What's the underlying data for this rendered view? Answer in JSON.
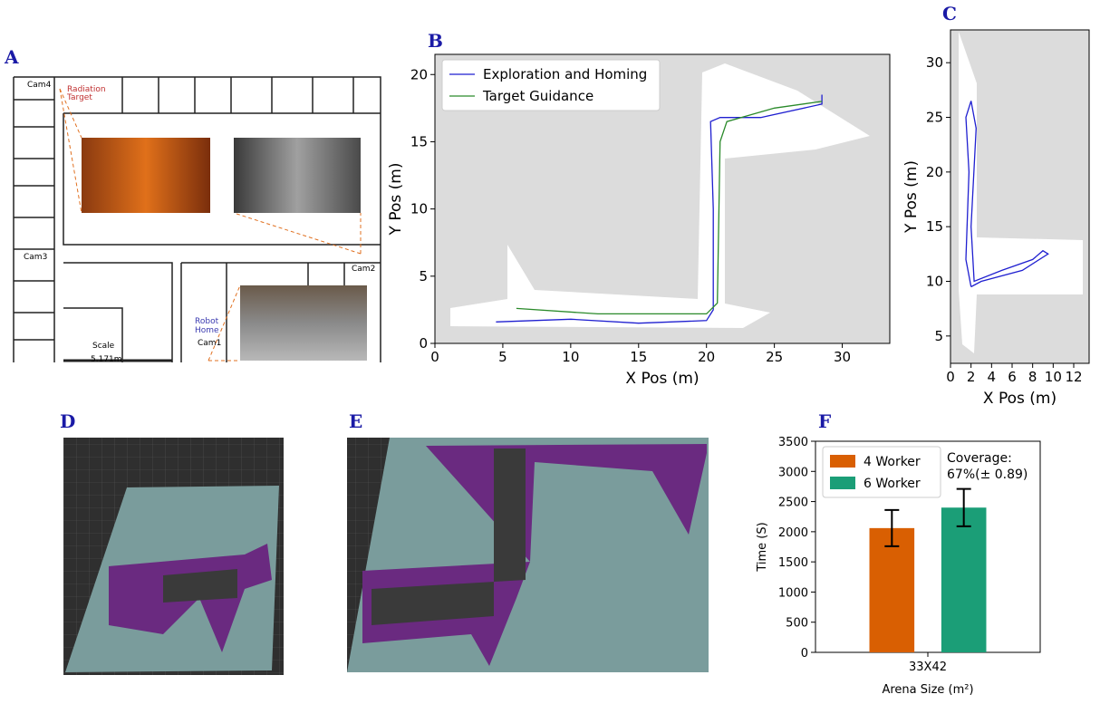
{
  "panel_labels": [
    "A",
    "B",
    "C",
    "D",
    "E",
    "F"
  ],
  "floor_plan": {
    "labels": [
      "Cam4",
      "Radiation",
      "Target",
      "Cam3",
      "Cam2",
      "Robot",
      "Home",
      "Cam1",
      "Scale",
      "5.171m"
    ]
  },
  "chart_data": [
    {
      "type": "line",
      "xlabel": "X Pos (m)",
      "ylabel": "Y Pos (m)",
      "xlim": [
        0,
        33.5
      ],
      "xticks": [
        0,
        5,
        10,
        15,
        20,
        25,
        30
      ],
      "ylim": [
        0,
        21.5
      ],
      "yticks": [
        0,
        5,
        10,
        15,
        20
      ],
      "legend": "upper left",
      "series": [
        {
          "name": "Exploration and Homing",
          "color": "#1f1fd0",
          "x": [
            4.5,
            10,
            15,
            20,
            20.5,
            20.5,
            20.3,
            21,
            24,
            28.5,
            28.5
          ],
          "values": [
            1.6,
            1.8,
            1.5,
            1.7,
            2.5,
            10,
            16.5,
            16.8,
            16.8,
            17.8,
            18.5
          ]
        },
        {
          "name": "Target Guidance",
          "color": "#2a8a2a",
          "x": [
            6,
            12,
            20,
            20.8,
            21,
            21.5,
            25,
            28.5
          ],
          "values": [
            2.6,
            2.2,
            2.2,
            3,
            15,
            16.5,
            17.5,
            18
          ]
        }
      ]
    },
    {
      "type": "line",
      "xlabel": "X Pos (m)",
      "ylabel": "Y Pos (m)",
      "xlim": [
        0,
        13.5
      ],
      "xticks": [
        0,
        2,
        4,
        6,
        8,
        10,
        12
      ],
      "ylim": [
        2.5,
        33
      ],
      "yticks": [
        5,
        10,
        15,
        20,
        25,
        30
      ],
      "series": [
        {
          "color": "#1f1fd0",
          "x": [
            2,
            1.5,
            1.8,
            1.5,
            2,
            2.5,
            2,
            2.3,
            5,
            8,
            9,
            9.5,
            7,
            3,
            2
          ],
          "values": [
            9.5,
            12,
            20,
            25,
            26.5,
            24,
            15,
            10,
            11,
            12,
            12.8,
            12.5,
            11,
            10,
            9.5
          ]
        }
      ]
    },
    {
      "type": "bar",
      "xlabel": "Arena Size (m²)",
      "ylabel": "Time (S)",
      "categories": [
        "33X42"
      ],
      "ylim": [
        0,
        3500
      ],
      "yticks": [
        0,
        500,
        1000,
        1500,
        2000,
        2500,
        3000,
        3500
      ],
      "legend": "upper left",
      "annotations": [
        "Coverage:",
        "67%(± 0.89)"
      ],
      "series": [
        {
          "name": "4 Worker",
          "color": "#d95f02",
          "values": [
            2060
          ],
          "errors": [
            300
          ]
        },
        {
          "name": "6 Worker",
          "color": "#1b9e77",
          "values": [
            2400
          ],
          "errors": [
            310
          ]
        }
      ]
    }
  ]
}
